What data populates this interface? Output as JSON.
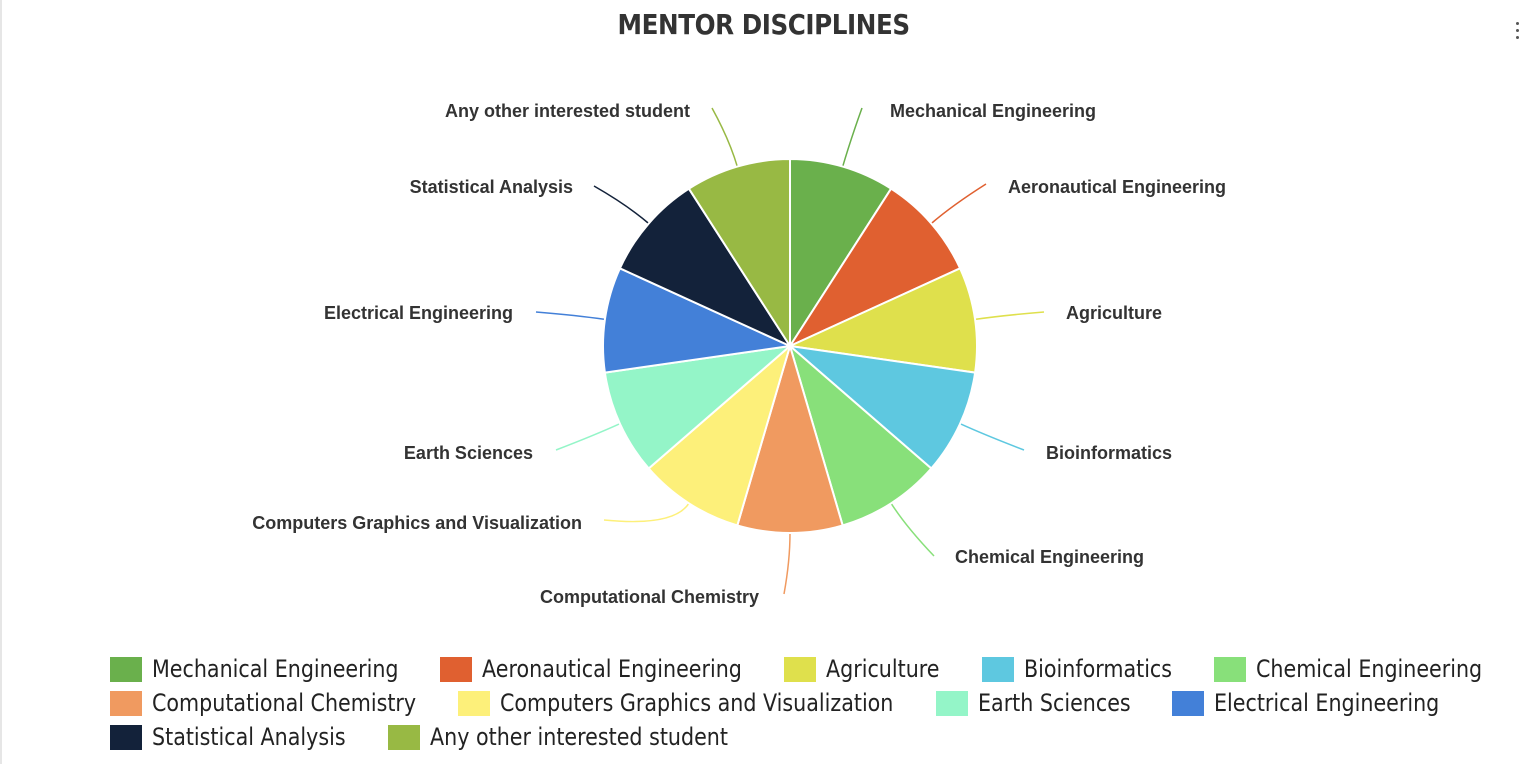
{
  "chart_data": {
    "type": "pie",
    "title": "MENTOR DISCIPLINES",
    "categories": [
      "Mechanical Engineering",
      "Aeronautical Engineering",
      "Agriculture",
      "Bioinformatics",
      "Chemical Engineering",
      "Computational Chemistry",
      "Computers Graphics and Visualization",
      "Earth Sciences",
      "Electrical Engineering",
      "Statistical Analysis",
      "Any other interested student"
    ],
    "values": [
      1,
      1,
      1,
      1,
      1,
      1,
      1,
      1,
      1,
      1,
      1
    ],
    "colors": [
      "#6ab04c",
      "#e06030",
      "#dfe04c",
      "#5ec8e0",
      "#88e07a",
      "#f09a60",
      "#fdf07a",
      "#94f5c8",
      "#4380d8",
      "#13223a",
      "#98b944"
    ],
    "legend_position": "bottom"
  }
}
